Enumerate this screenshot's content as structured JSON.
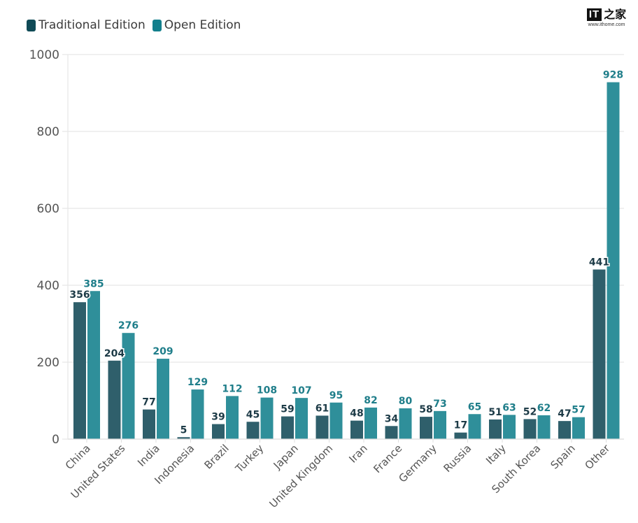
{
  "legend": [
    {
      "label": "Traditional Edition",
      "color": "#0f4a56"
    },
    {
      "label": "Open Edition",
      "color": "#127f8c"
    }
  ],
  "watermark": {
    "mark": "IT",
    "cn": "之家",
    "url": "www.ithome.com"
  },
  "chart_data": {
    "type": "bar",
    "title": "",
    "xlabel": "",
    "ylabel": "",
    "ylim": [
      0,
      1000
    ],
    "yticks": [
      0,
      200,
      400,
      600,
      800,
      1000
    ],
    "grid": true,
    "legend_position": "top-left",
    "categories": [
      "China",
      "United States",
      "India",
      "Indonesia",
      "Brazil",
      "Turkey",
      "Japan",
      "United Kingdom",
      "Iran",
      "France",
      "Germany",
      "Russia",
      "Italy",
      "South Korea",
      "Spain",
      "Other"
    ],
    "series": [
      {
        "name": "Traditional Edition",
        "bar_color": "#2f5f6b",
        "label_color": "#1d3b47",
        "values": [
          356,
          204,
          77,
          5,
          39,
          45,
          59,
          61,
          48,
          34,
          58,
          17,
          51,
          52,
          47,
          441
        ]
      },
      {
        "name": "Open Edition",
        "bar_color": "#2f8f9a",
        "label_color": "#1f7e8a",
        "values": [
          385,
          276,
          209,
          129,
          112,
          108,
          107,
          95,
          82,
          80,
          73,
          65,
          63,
          62,
          57,
          928
        ]
      }
    ]
  }
}
